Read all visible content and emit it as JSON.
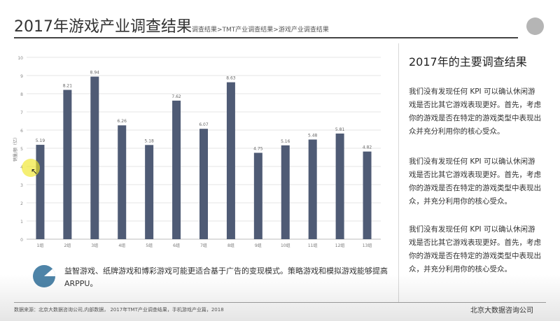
{
  "header": {
    "title": "2017年游戏产业调查结果",
    "breadcrumb": "调查结果>TMT产业调查结果>游戏产业调查结果"
  },
  "chart_data": {
    "type": "bar",
    "categories": [
      "1组",
      "2组",
      "3组",
      "4组",
      "5组",
      "6组",
      "7组",
      "8组",
      "9组",
      "10组",
      "11组",
      "12组",
      "13组"
    ],
    "values": [
      5.19,
      8.21,
      8.94,
      6.26,
      5.18,
      7.62,
      6.07,
      8.63,
      4.75,
      5.16,
      5.48,
      5.81,
      4.82
    ],
    "ylabel": "销量/额（亿）",
    "ylim": [
      0,
      10
    ],
    "yticks": [
      0,
      1,
      2,
      3,
      4,
      5,
      6,
      7,
      8,
      9,
      10
    ],
    "grid": true,
    "bar_color": "#4f5b75"
  },
  "right_panel": {
    "title": "2017年的主要调查结果",
    "paragraphs": [
      "我们没有发现任何 KPI 可以确认休闲游戏是否比其它游戏表现更好。首先，考虑你的游戏是否在特定的游戏类型中表现出众并充分利用你的核心受众。",
      "我们没有发现任何 KPI 可以确认休闲游戏是否比其它游戏表现更好。首先，考虑你的游戏是否在特定的游戏类型中表现出众，并充分利用你的核心受众。",
      "我们没有发现任何 KPI 可以确认休闲游戏是否比其它游戏表现更好。首先，考虑你的游戏是否在特定的游戏类型中表现出众，并充分利用你的核心受众。"
    ]
  },
  "note": {
    "icon": "pie-chart-icon",
    "text": "益智游戏、纸牌游戏和博彩游戏可能更适合基于广告的变现模式。策略游戏和模拟游戏能够提高ARPPU。"
  },
  "footer": {
    "source": "数据来源：北京大数据咨询公司,内部数据， 2017年TMT产业调查结果，手机游戏产业篇，2018",
    "company": "北京大数据咨询公司"
  },
  "colors": {
    "accent": "#4f5b75",
    "icon_blue": "#4e84a8"
  }
}
